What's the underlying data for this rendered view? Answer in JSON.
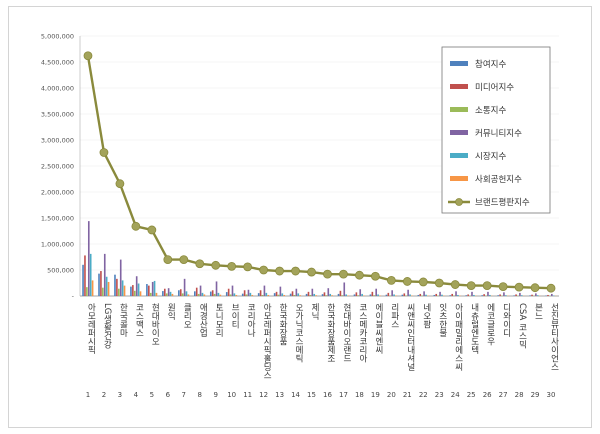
{
  "chart_data": {
    "type": "bar",
    "ylim": [
      0,
      5000000
    ],
    "y_ticks": [
      "-",
      "500,000",
      "1,000,000",
      "1,500,000",
      "2,000,000",
      "2,500,000",
      "3,000,000",
      "3,500,000",
      "4,000,000",
      "4,500,000",
      "5,000,000"
    ],
    "legend_position": "top-right",
    "grid": true,
    "x": [
      "1",
      "2",
      "3",
      "4",
      "5",
      "6",
      "7",
      "8",
      "9",
      "10",
      "11",
      "12",
      "13",
      "14",
      "15",
      "16",
      "17",
      "18",
      "19",
      "20",
      "21",
      "22",
      "23",
      "24",
      "25",
      "26",
      "27",
      "28",
      "29",
      "30"
    ],
    "categories": [
      "아모레퍼시픽",
      "LG생활건강",
      "한국콜마",
      "코스맥스",
      "현대바이오",
      "원익",
      "클리오",
      "애경산업",
      "토니모리",
      "브이티",
      "코리아나",
      "아모레퍼시픽홀딩스",
      "한국화장품",
      "오가닉코스메틱",
      "제닉",
      "한국화장품제조",
      "현대바이오랜드",
      "코스메카코리아",
      "에이블씨엔씨",
      "리파스",
      "씨앤씨인터내셔널",
      "네오팜",
      "잇츠한불",
      "아이패밀리에스씨",
      "내츄럴엔도텍",
      "에코글로우",
      "디와이디",
      "CSA 코스믹",
      "본느",
      "선진뷰티사이언스"
    ],
    "series": [
      {
        "name": "참여지수",
        "color": "#4f81bd",
        "type": "bar",
        "values": [
          600000,
          430000,
          410000,
          180000,
          230000,
          95000,
          110000,
          90000,
          85000,
          75000,
          45000,
          55000,
          55000,
          45000,
          40000,
          35000,
          40000,
          30000,
          30000,
          25000,
          25000,
          20000,
          20000,
          15000,
          15000,
          15000,
          15000,
          12000,
          12000,
          10000
        ]
      },
      {
        "name": "미디어지수",
        "color": "#c0504d",
        "type": "bar",
        "values": [
          780000,
          480000,
          330000,
          210000,
          200000,
          140000,
          130000,
          160000,
          110000,
          140000,
          110000,
          110000,
          80000,
          90000,
          80000,
          70000,
          100000,
          70000,
          80000,
          60000,
          50000,
          40000,
          40000,
          40000,
          30000,
          35000,
          30000,
          30000,
          25000,
          20000
        ]
      },
      {
        "name": "소통지수",
        "color": "#9bbb59",
        "type": "bar",
        "values": [
          170000,
          160000,
          140000,
          100000,
          60000,
          50000,
          50000,
          40000,
          40000,
          30000,
          30000,
          20000,
          25000,
          20000,
          20000,
          15000,
          15000,
          15000,
          15000,
          10000,
          10000,
          10000,
          10000,
          10000,
          8000,
          8000,
          8000,
          8000,
          6000,
          6000
        ]
      },
      {
        "name": "커뮤니티지수",
        "color": "#8064a2",
        "type": "bar",
        "values": [
          1440000,
          810000,
          700000,
          380000,
          270000,
          150000,
          330000,
          200000,
          280000,
          200000,
          120000,
          200000,
          180000,
          140000,
          140000,
          150000,
          260000,
          130000,
          140000,
          110000,
          120000,
          90000,
          80000,
          90000,
          80000,
          80000,
          70000,
          60000,
          50000,
          40000
        ]
      },
      {
        "name": "시장지수",
        "color": "#4bacc6",
        "type": "bar",
        "values": [
          810000,
          370000,
          300000,
          240000,
          290000,
          80000,
          90000,
          60000,
          60000,
          50000,
          60000,
          60000,
          50000,
          50000,
          40000,
          40000,
          30000,
          40000,
          30000,
          30000,
          30000,
          25000,
          25000,
          20000,
          20000,
          20000,
          15000,
          15000,
          15000,
          10000
        ]
      },
      {
        "name": "사회공헌지수",
        "color": "#f79646",
        "type": "bar",
        "values": [
          300000,
          270000,
          200000,
          90000,
          60000,
          40000,
          30000,
          30000,
          25000,
          20000,
          20000,
          20000,
          20000,
          15000,
          15000,
          15000,
          10000,
          10000,
          10000,
          10000,
          10000,
          8000,
          8000,
          8000,
          6000,
          6000,
          6000,
          5000,
          5000,
          5000
        ]
      },
      {
        "name": "브랜드평판지수",
        "color": "#8a8a3c",
        "type": "line",
        "values": [
          4620000,
          2760000,
          2160000,
          1340000,
          1270000,
          700000,
          700000,
          620000,
          590000,
          570000,
          560000,
          500000,
          480000,
          480000,
          460000,
          420000,
          420000,
          400000,
          380000,
          300000,
          280000,
          270000,
          250000,
          220000,
          200000,
          200000,
          180000,
          170000,
          160000,
          150000
        ]
      }
    ]
  }
}
